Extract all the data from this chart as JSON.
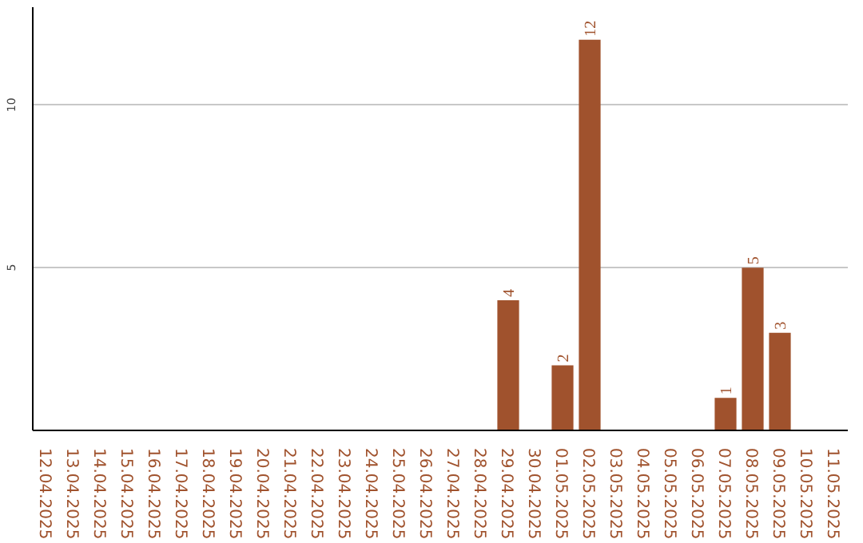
{
  "chart_data": {
    "type": "bar",
    "categories": [
      "12.04.2025",
      "13.04.2025",
      "14.04.2025",
      "15.04.2025",
      "16.04.2025",
      "17.04.2025",
      "18.04.2025",
      "19.04.2025",
      "20.04.2025",
      "21.04.2025",
      "22.04.2025",
      "23.04.2025",
      "24.04.2025",
      "25.04.2025",
      "26.04.2025",
      "27.04.2025",
      "28.04.2025",
      "29.04.2025",
      "30.04.2025",
      "01.05.2025",
      "02.05.2025",
      "03.05.2025",
      "04.05.2025",
      "05.05.2025",
      "06.05.2025",
      "07.05.2025",
      "08.05.2025",
      "09.05.2025",
      "10.05.2025",
      "11.05.2025"
    ],
    "values": [
      0,
      0,
      0,
      0,
      0,
      0,
      0,
      0,
      0,
      0,
      0,
      0,
      0,
      0,
      0,
      0,
      0,
      4,
      0,
      2,
      12,
      0,
      0,
      0,
      0,
      1,
      5,
      3,
      0,
      0
    ],
    "value_labels": [
      null,
      null,
      null,
      null,
      null,
      null,
      null,
      null,
      null,
      null,
      null,
      null,
      null,
      null,
      null,
      null,
      null,
      "4",
      null,
      "2",
      "12",
      null,
      null,
      null,
      null,
      "1",
      "5",
      "3",
      null,
      null
    ],
    "color": "#a0522d",
    "ylim": [
      0,
      13
    ],
    "yticks": [
      5,
      10
    ],
    "grid": "y"
  }
}
